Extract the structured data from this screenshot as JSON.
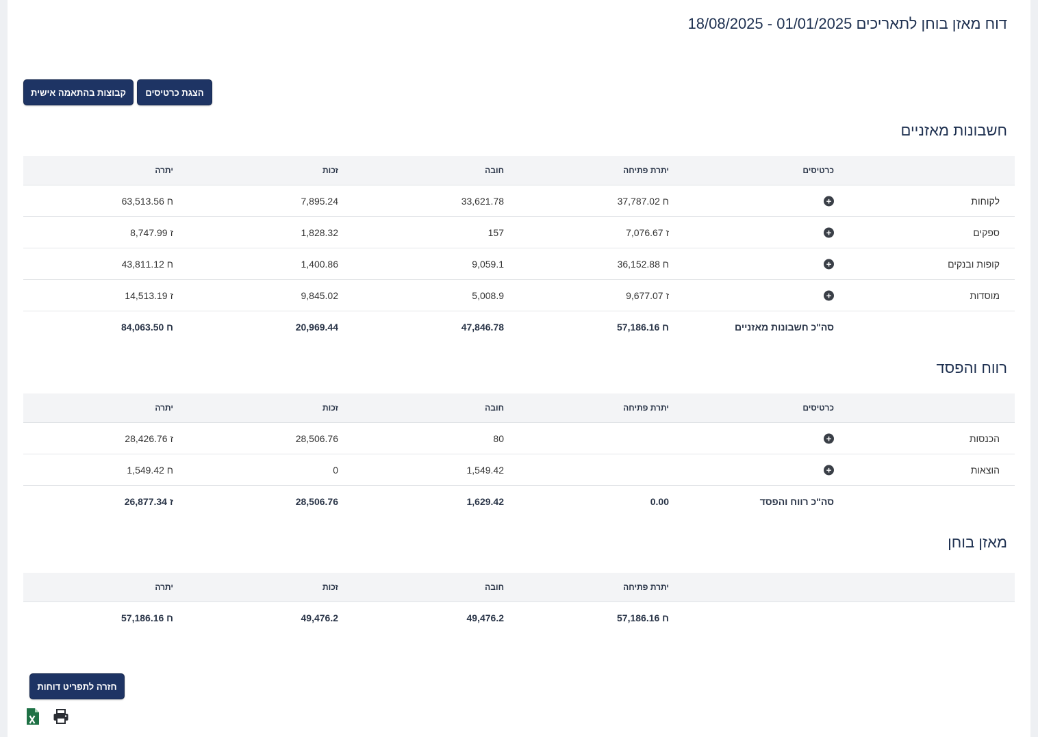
{
  "page": {
    "title": "דוח מאזן בוחן לתאריכים 01/01/2025 - 18/08/2025"
  },
  "buttons": {
    "show_cards": "הצגת כרטיסים",
    "custom_groups": "קבוצות בהתאמה אישית",
    "back": "חזרה לתפריט דוחות"
  },
  "columns": {
    "cards": "כרטיסים",
    "opening": "יתרת פתיחה",
    "debit": "חובה",
    "credit": "זכות",
    "balance": "יתרה"
  },
  "balance_sheet": {
    "title": "חשבונות מאזניים",
    "rows": [
      {
        "name": "לקוחות",
        "opening": "ח 37,787.02",
        "debit": "33,621.78",
        "credit": "7,895.24",
        "balance": "ח 63,513.56"
      },
      {
        "name": "ספקים",
        "opening": "ז 7,076.67",
        "debit": "157",
        "credit": "1,828.32",
        "balance": "ז 8,747.99"
      },
      {
        "name": "קופות ובנקים",
        "opening": "ח 36,152.88",
        "debit": "9,059.1",
        "credit": "1,400.86",
        "balance": "ח 43,811.12"
      },
      {
        "name": "מוסדות",
        "opening": "ז 9,677.07",
        "debit": "5,008.9",
        "credit": "9,845.02",
        "balance": "ז 14,513.19"
      }
    ],
    "total": {
      "label": "סה\"כ חשבונות מאזניים",
      "opening": "ח 57,186.16",
      "debit": "47,846.78",
      "credit": "20,969.44",
      "balance": "ח 84,063.50"
    }
  },
  "profit_loss": {
    "title": "רווח והפסד",
    "rows": [
      {
        "name": "הכנסות",
        "opening": "",
        "debit": "80",
        "credit": "28,506.76",
        "balance": "ז 28,426.76"
      },
      {
        "name": "הוצאות",
        "opening": "",
        "debit": "1,549.42",
        "credit": "0",
        "balance": "ח 1,549.42"
      }
    ],
    "total": {
      "label": "סה\"כ רווח והפסד",
      "opening": "0.00",
      "debit": "1,629.42",
      "credit": "28,506.76",
      "balance": "ז 26,877.34"
    }
  },
  "trial_balance": {
    "title": "מאזן בוחן",
    "total": {
      "opening": "ח 57,186.16",
      "debit": "49,476.2",
      "credit": "49,476.2",
      "balance": "ח 57,186.16"
    }
  },
  "icons": {
    "excel": "excel-export-icon",
    "print": "print-icon",
    "expand": "plus-circle-icon",
    "excel_color": "#1e7145"
  }
}
